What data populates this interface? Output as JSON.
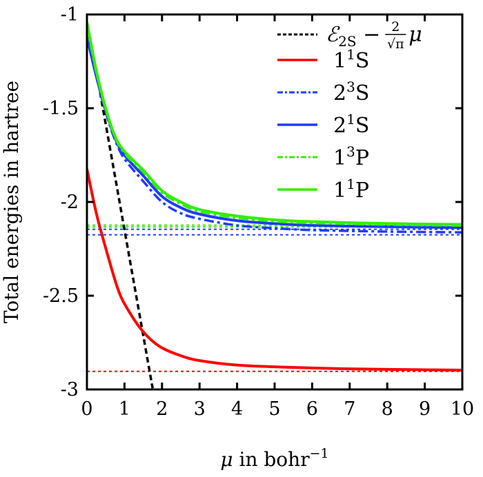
{
  "chart_data": {
    "type": "line",
    "xlabel": "μ in bohr",
    "xlabel_sup": "−1",
    "ylabel": "Total energies in hartree",
    "xlim": [
      0,
      10
    ],
    "ylim": [
      -3,
      -1
    ],
    "xticks": [
      "0",
      "1",
      "2",
      "3",
      "4",
      "5",
      "6",
      "7",
      "8",
      "9",
      "10"
    ],
    "yticks": [
      "-1",
      "-1.5",
      "-2",
      "-2.5",
      "-3"
    ],
    "grid": false,
    "legend_position": "top-right",
    "series": [
      {
        "name": "ℰ2S − (2/√π)μ",
        "legend": {
          "main": "ℰ",
          "sub": "2S",
          "op": "−",
          "num": "2",
          "den": "√π",
          "tail": "μ"
        },
        "color": "#000000",
        "style": "dashed",
        "x": [
          0.35,
          1.75
        ],
        "y": [
          -1.415,
          -2.994
        ]
      },
      {
        "name": "1¹S",
        "legend": {
          "main": "1",
          "sup": "1",
          "tail": "S"
        },
        "color": "#ff0000",
        "style": "solid",
        "x": [
          0,
          0.25,
          0.5,
          0.83,
          1.1,
          1.49,
          1.93,
          2.5,
          3,
          4,
          5.4,
          7,
          8.5,
          10
        ],
        "y": [
          -1.824,
          -2.06,
          -2.246,
          -2.467,
          -2.577,
          -2.69,
          -2.77,
          -2.82,
          -2.846,
          -2.87,
          -2.882,
          -2.89,
          -2.894,
          -2.897
        ]
      },
      {
        "name": "2³S",
        "legend": {
          "main": "2",
          "sup": "3",
          "tail": "S"
        },
        "color": "#1f3cff",
        "style": "dashdot",
        "x": [
          0,
          0.25,
          0.5,
          0.75,
          1,
          1.5,
          2,
          2.5,
          3,
          4,
          5,
          6,
          8,
          10
        ],
        "y": [
          -1.12,
          -1.33,
          -1.52,
          -1.67,
          -1.77,
          -1.89,
          -2.0,
          -2.06,
          -2.09,
          -2.125,
          -2.14,
          -2.15,
          -2.158,
          -2.162
        ]
      },
      {
        "name": "2¹S",
        "legend": {
          "main": "2",
          "sup": "1",
          "tail": "S"
        },
        "color": "#1f3cff",
        "style": "solid",
        "x": [
          0,
          0.25,
          0.5,
          0.75,
          1,
          1.5,
          2,
          2.5,
          3,
          4,
          5,
          6,
          8,
          10
        ],
        "y": [
          -1.12,
          -1.33,
          -1.51,
          -1.66,
          -1.75,
          -1.86,
          -1.97,
          -2.03,
          -2.065,
          -2.1,
          -2.115,
          -2.125,
          -2.132,
          -2.137
        ]
      },
      {
        "name": "1³P",
        "legend": {
          "main": "1",
          "sup": "3",
          "tail": "P"
        },
        "color": "#33ee00",
        "style": "dashdot",
        "x": [
          0,
          0.25,
          0.5,
          0.75,
          1,
          1.5,
          2,
          2.5,
          3,
          4,
          5,
          6,
          8,
          10
        ],
        "y": [
          -1.06,
          -1.31,
          -1.505,
          -1.655,
          -1.74,
          -1.84,
          -1.95,
          -2.01,
          -2.05,
          -2.085,
          -2.103,
          -2.112,
          -2.121,
          -2.126
        ]
      },
      {
        "name": "1¹P",
        "legend": {
          "main": "1",
          "sup": "1",
          "tail": "P"
        },
        "color": "#33ee00",
        "style": "solid",
        "x": [
          0,
          0.25,
          0.5,
          0.75,
          1,
          1.5,
          2,
          2.5,
          3,
          4,
          5,
          6,
          8,
          10
        ],
        "y": [
          -1.04,
          -1.3,
          -1.5,
          -1.65,
          -1.73,
          -1.83,
          -1.94,
          -2.0,
          -2.04,
          -2.075,
          -2.095,
          -2.105,
          -2.115,
          -2.12
        ]
      }
    ],
    "asymptotes": [
      {
        "value": -2.9037,
        "color": "#ff0000"
      },
      {
        "value": -2.1752,
        "color": "#1f3cff"
      },
      {
        "value": -2.1459,
        "color": "#1f3cff"
      },
      {
        "value": -2.1332,
        "color": "#33ee00"
      },
      {
        "value": -2.1238,
        "color": "#33ee00"
      }
    ]
  }
}
